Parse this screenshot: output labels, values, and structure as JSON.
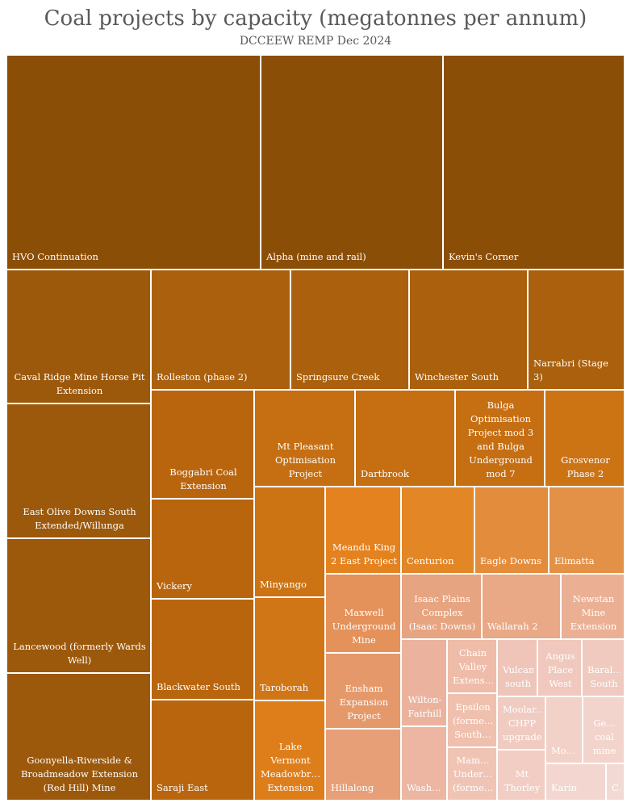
{
  "chart_data": {
    "type": "treemap",
    "title": "Coal projects by capacity (megatonnes per annum)",
    "subtitle": "DCCEEW REMP Dec 2024",
    "value_unit": "megatonnes per annum",
    "colors": {
      "high": "#8b4e07",
      "mid": "#df7f1e",
      "low": "#f3d9d3"
    },
    "items": [
      {
        "name": "HVO Continuation",
        "label": "HVO Continuation",
        "value": 60,
        "color": "#8b4e07"
      },
      {
        "name": "Alpha (mine and rail)",
        "label": "Alpha (mine and rail)",
        "value": 60,
        "color": "#8b4e07"
      },
      {
        "name": "Kevin's Corner",
        "label": "Kevin's Corner",
        "value": 60,
        "color": "#8b4e07"
      },
      {
        "name": "Caval Ridge Mine Horse Pit Extension",
        "label": "Caval Ridge Mine Horse Pit Extension",
        "value": 15,
        "color": "#9c580b"
      },
      {
        "name": "East Olive Downs South Extended/Willunga",
        "label": "East Olive Downs South Extended/Willunga",
        "value": 15,
        "color": "#9c580b"
      },
      {
        "name": "Lancewood (formerly Wards Well)",
        "label": "Lancewood (formerly Wards Well)",
        "value": 15,
        "color": "#9c580b"
      },
      {
        "name": "Goonyella-Riverside & Broadmeadow Extension (Red Hill) Mine",
        "label": "Goonyella-Riverside & Broadmeadow Extension (Red Hill) Mine",
        "value": 14,
        "color": "#9c580b"
      },
      {
        "name": "Rolleston (phase 2)",
        "label": "Rolleston (phase 2)",
        "value": 13,
        "color": "#aa600c"
      },
      {
        "name": "Springsure Creek",
        "label": "Springsure Creek",
        "value": 12.5,
        "color": "#aa600c"
      },
      {
        "name": "Winchester South",
        "label": "Winchester South",
        "value": 12.5,
        "color": "#aa600c"
      },
      {
        "name": "Narrabri (Stage 3)",
        "label": "Narrabri (Stage 3)",
        "value": 11.5,
        "color": "#aa600c"
      },
      {
        "name": "Boggabri Coal Extension",
        "label": "Boggabri Coal Extension",
        "value": 10,
        "color": "#b8650e"
      },
      {
        "name": "Vickery",
        "label": "Vickery",
        "value": 10,
        "color": "#b8650e"
      },
      {
        "name": "Blackwater South",
        "label": "Blackwater South",
        "value": 10,
        "color": "#b8650e"
      },
      {
        "name": "Saraji East",
        "label": "Saraji East",
        "value": 10,
        "color": "#b8650e"
      },
      {
        "name": "Mt Pleasant Optimisation Project",
        "label": "Mt Pleasant Optimisation Project",
        "value": 10,
        "color": "#c56e12"
      },
      {
        "name": "Dartbrook",
        "label": "Dartbrook",
        "value": 10,
        "color": "#c56e12"
      },
      {
        "name": "Bulga Optimisation Project mod 3 and Bulga Underground mod 7",
        "label": "Bulga Optimisation Project mod 3 and Bulga Underground mod 7",
        "value": 9.6,
        "color": "#c56e12"
      },
      {
        "name": "Grosvenor Phase 2",
        "label": "Grosvenor Phase 2",
        "value": 8,
        "color": "#cc7314"
      },
      {
        "name": "Minyango",
        "label": "Minyango",
        "value": 8,
        "color": "#cc7314"
      },
      {
        "name": "Taroborah",
        "label": "Taroborah",
        "value": 8,
        "color": "#d17617"
      },
      {
        "name": "Lake Vermont Meadowbrook Extension",
        "label": "Lake Vermont Meadowbr… Extension",
        "value": 8,
        "color": "#de7e1a"
      },
      {
        "name": "Meandu King 2 East Project",
        "label": "Meandu King 2 East Project",
        "value": 6.5,
        "color": "#e3821e"
      },
      {
        "name": "Centurion",
        "label": "Centurion",
        "value": 6.3,
        "color": "#e38626"
      },
      {
        "name": "Eagle Downs",
        "label": "Eagle Downs",
        "value": 6.3,
        "color": "#e38c3c"
      },
      {
        "name": "Elimatta",
        "label": "Elimatta",
        "value": 5.8,
        "color": "#e39146"
      },
      {
        "name": "Maxwell Underground Mine",
        "label": "Maxwell Underground Mine",
        "value": 6,
        "color": "#e4915a"
      },
      {
        "name": "Ensham Expansion Project",
        "label": "Ensham Expansion Project",
        "value": 5.5,
        "color": "#e5996a"
      },
      {
        "name": "Hillalong",
        "label": "Hillalong",
        "value": 5,
        "color": "#e69f76"
      },
      {
        "name": "Isaac Plains Complex (Isaac Downs)",
        "label": "Isaac Plains Complex (Isaac Downs)",
        "value": 5,
        "color": "#e7a481"
      },
      {
        "name": "Wallarah 2",
        "label": "Wallarah 2",
        "value": 5,
        "color": "#e9a986"
      },
      {
        "name": "Newstan Mine Extension",
        "label": "Newstan Mine Extension",
        "value": 4,
        "color": "#ebb094"
      },
      {
        "name": "Wilton-Fairhill",
        "label": "Wilton-Fairhill",
        "value": 3.6,
        "color": "#ebb39e"
      },
      {
        "name": "Washpool",
        "label": "Wash…",
        "value": 3.3,
        "color": "#ecb6a2"
      },
      {
        "name": "Chain Valley Extension",
        "label": "Chain Valley Extens…",
        "value": 2.6,
        "color": "#eebca9"
      },
      {
        "name": "Epsilon (formerly South…)",
        "label": "Epsilon (forme… South…",
        "value": 2.3,
        "color": "#efc0ae"
      },
      {
        "name": "Mammoth Underground (formerly…)",
        "label": "Mam… Under… (forme…",
        "value": 2.2,
        "color": "#f0c4b4"
      },
      {
        "name": "Vulcan south",
        "label": "Vulcan south",
        "value": 2,
        "color": "#efc5ba"
      },
      {
        "name": "Angus Place West",
        "label": "Angus Place West",
        "value": 2,
        "color": "#f0c8bd"
      },
      {
        "name": "Baralaba South",
        "label": "Baral… South",
        "value": 2,
        "color": "#f0cabf"
      },
      {
        "name": "Moolarben CHPP upgrade",
        "label": "Moolar… CHPP upgrade",
        "value": 2,
        "color": "#f0cbc1"
      },
      {
        "name": "Mt Thorley",
        "label": "Mt Thorley",
        "value": 2,
        "color": "#f1cdc4"
      },
      {
        "name": "Moolarben",
        "label": "Mo…",
        "value": 1.5,
        "color": "#f2d1c8"
      },
      {
        "name": "Gemini coal mine",
        "label": "Ge… coal mine",
        "value": 1.2,
        "color": "#f2d4cc"
      },
      {
        "name": "Karin",
        "label": "Karin",
        "value": 1.1,
        "color": "#f2d6cf"
      },
      {
        "name": "C…",
        "label": "C…",
        "value": 0.4,
        "color": "#f3d9d3"
      }
    ]
  }
}
